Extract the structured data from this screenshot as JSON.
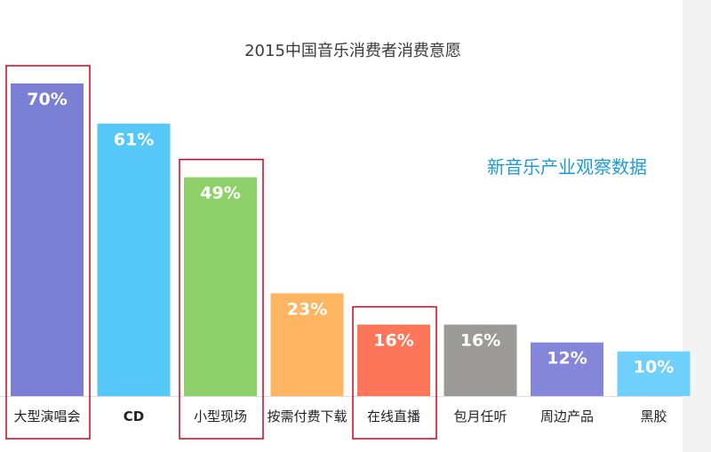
{
  "chart_data": {
    "type": "bar",
    "title": "2015中国音乐消费者消费意愿",
    "annotation": "新音乐产业观察数据",
    "categories": [
      "大型演唱会",
      "CD",
      "小型现场",
      "按需付费下载",
      "在线直播",
      "包月任听",
      "周边产品",
      "黑胶"
    ],
    "values": [
      70,
      61,
      49,
      23,
      16,
      16,
      12,
      10
    ],
    "value_labels": [
      "70%",
      "61%",
      "49%",
      "23%",
      "16%",
      "16%",
      "12%",
      "10%"
    ],
    "unit": "%",
    "ylim": [
      0,
      70
    ],
    "colors": [
      "#7b7fd4",
      "#55c8f8",
      "#8ed16b",
      "#fdb562",
      "#fd7659",
      "#9b9a96",
      "#8486d9",
      "#6fd0fb"
    ],
    "highlighted_categories": [
      "大型演唱会",
      "小型现场",
      "在线直播"
    ],
    "highlight_color": "#d0021b",
    "grid": false,
    "legend": "none"
  }
}
